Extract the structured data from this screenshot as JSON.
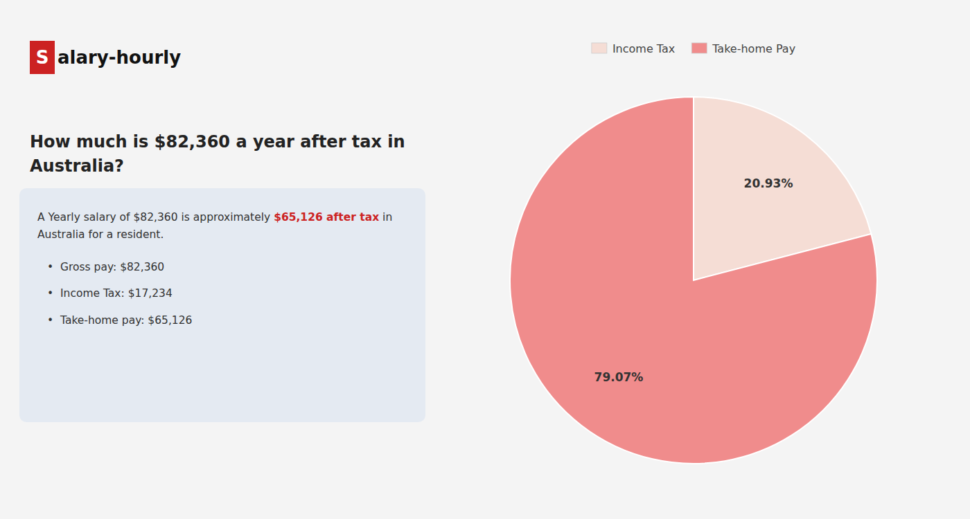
{
  "chart_data": {
    "type": "pie",
    "title": "How much is $82,360 a year after tax in Australia?",
    "categories": [
      "Income Tax",
      "Take-home Pay"
    ],
    "values": [
      20.93,
      79.07
    ],
    "value_labels": [
      "20.93%",
      "79.07%"
    ],
    "colors": [
      "#f5ddd5",
      "#f08c8c"
    ],
    "data_labels": true,
    "legend": "top",
    "annotations": [
      "S",
      "alary-hourly",
      "A Yearly salary of $82,360 is approximately ",
      "$65,126 after tax",
      " in",
      "Australia for a resident.",
      "•  Gross pay: $82,360",
      "•  Income Tax: $17,234",
      "•  Take-home pay: $65,126"
    ]
  }
}
